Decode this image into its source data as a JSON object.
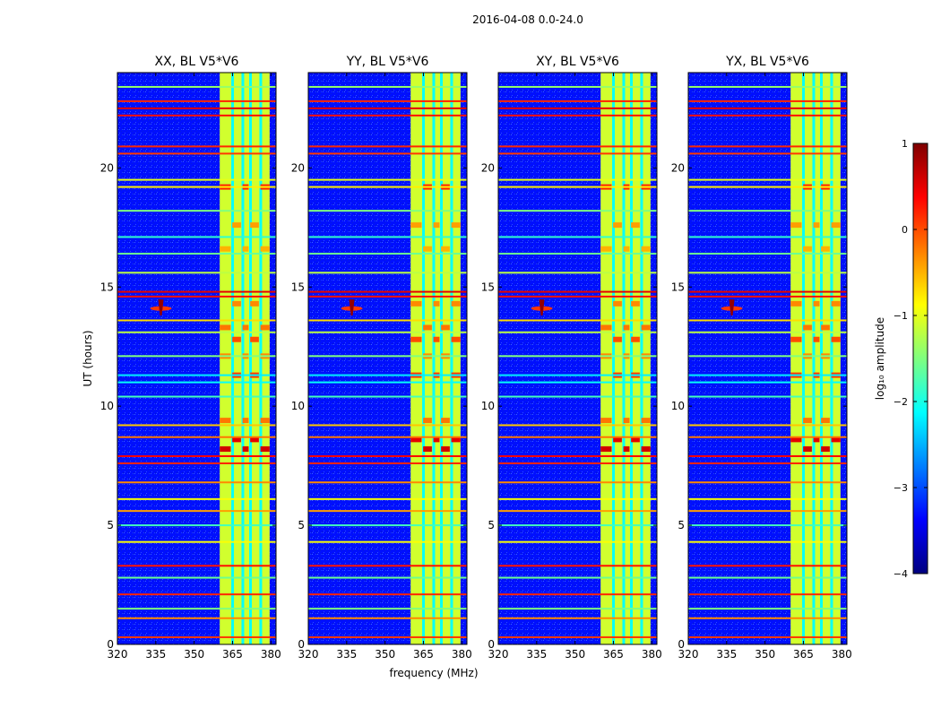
{
  "figure": {
    "title": "2016-04-08 0.0-24.0",
    "ylabel": "UT (hours)",
    "xlabel": "frequency (MHz)"
  },
  "chart_data": {
    "type": "heatmap",
    "xlim": [
      320,
      382
    ],
    "ylim": [
      0,
      24
    ],
    "xticks": [
      320,
      335,
      350,
      365,
      380
    ],
    "yticks": [
      0,
      5,
      10,
      15,
      20
    ],
    "x_unit": "MHz",
    "y_unit": "hours",
    "panels": [
      {
        "title": "XX, BL V5*V6"
      },
      {
        "title": "YY, BL V5*V6"
      },
      {
        "title": "XY, BL V5*V6"
      },
      {
        "title": "YX, BL V5*V6"
      }
    ],
    "colorbar": {
      "label": "log₁₀ amplitude",
      "range": [
        -4,
        1
      ],
      "ticks": [
        1,
        0,
        -1,
        -2,
        -3,
        -4
      ],
      "tick_labels": [
        "1",
        "0",
        "−1",
        "−2",
        "−3",
        "−4"
      ],
      "colormap": [
        "#00007f",
        "#0000ff",
        "#007fff",
        "#00ffff",
        "#7fff7f",
        "#ffff00",
        "#ff7f00",
        "#ff0000",
        "#7f0000"
      ]
    },
    "background_level": -3.3,
    "band_level": -1.1,
    "bright_band_mhz": [
      360,
      379.5
    ],
    "band_gaps_mhz": [
      364.5,
      368.5,
      371.5,
      375.5
    ],
    "rfi_lines": [
      {
        "t": 0.3,
        "level": 0.1
      },
      {
        "t": 1.1,
        "level": -0.3
      },
      {
        "t": 1.5,
        "level": -1.5
      },
      {
        "t": 2.1,
        "level": 0.2
      },
      {
        "t": 2.8,
        "level": -1.6
      },
      {
        "t": 3.3,
        "level": 0.3
      },
      {
        "t": 4.3,
        "level": -0.9
      },
      {
        "t": 5.0,
        "level": -1.8
      },
      {
        "t": 5.6,
        "level": -0.4
      },
      {
        "t": 6.1,
        "level": -0.9
      },
      {
        "t": 6.8,
        "level": -0.3
      },
      {
        "t": 7.6,
        "level": 0.2
      },
      {
        "t": 7.9,
        "level": 0.4
      },
      {
        "t": 8.7,
        "level": -0.2
      },
      {
        "t": 9.2,
        "level": -0.6
      },
      {
        "t": 10.4,
        "level": -1.8
      },
      {
        "t": 11.0,
        "level": -2.1
      },
      {
        "t": 11.3,
        "level": -2.2
      },
      {
        "t": 12.1,
        "level": -1.5
      },
      {
        "t": 13.1,
        "level": -1.2
      },
      {
        "t": 13.6,
        "level": -0.7
      },
      {
        "t": 14.6,
        "level": 0.3
      },
      {
        "t": 14.8,
        "level": 0.5
      },
      {
        "t": 15.6,
        "level": -1.2
      },
      {
        "t": 16.4,
        "level": -1.6
      },
      {
        "t": 17.1,
        "level": -1.9
      },
      {
        "t": 18.2,
        "level": -1.5
      },
      {
        "t": 19.2,
        "level": -0.8
      },
      {
        "t": 19.5,
        "level": -1.0
      },
      {
        "t": 20.6,
        "level": 0.1
      },
      {
        "t": 20.9,
        "level": 0.2
      },
      {
        "t": 22.2,
        "level": 0.3
      },
      {
        "t": 22.5,
        "level": 0.5
      },
      {
        "t": 22.8,
        "level": 0.2
      },
      {
        "t": 23.4,
        "level": -1.4
      }
    ],
    "burst": {
      "freq_mhz": 337,
      "t": 14.1,
      "level": 0.9
    },
    "band_blobs": [
      {
        "t": 19.2,
        "level": 0.2
      },
      {
        "t": 17.6,
        "level": -0.4
      },
      {
        "t": 16.6,
        "level": -0.5
      },
      {
        "t": 14.3,
        "level": -0.3
      },
      {
        "t": 13.3,
        "level": -0.2
      },
      {
        "t": 12.8,
        "level": 0.0
      },
      {
        "t": 12.1,
        "level": -0.3
      },
      {
        "t": 11.3,
        "level": 0.1
      },
      {
        "t": 9.4,
        "level": -0.2
      },
      {
        "t": 8.6,
        "level": 0.5
      },
      {
        "t": 8.2,
        "level": 0.6
      }
    ]
  }
}
